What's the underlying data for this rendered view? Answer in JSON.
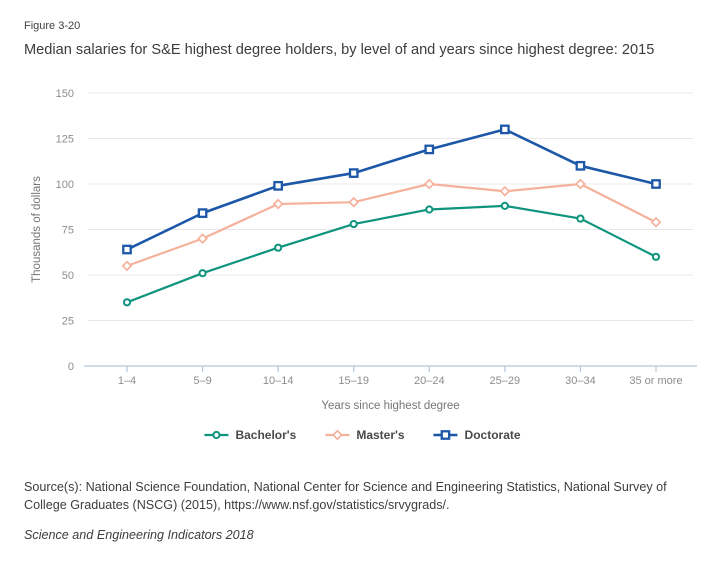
{
  "figure": {
    "label": "Figure 3-20",
    "title": "Median salaries for S&E highest degree holders, by level of and years since highest degree: 2015"
  },
  "chart_data": {
    "type": "line",
    "categories": [
      "1–4",
      "5–9",
      "10–14",
      "15–19",
      "20–24",
      "25–29",
      "30–34",
      "35 or more"
    ],
    "series": [
      {
        "name": "Bachelor's",
        "color": "#0f947e",
        "marker": "circle",
        "values": [
          35,
          51,
          65,
          78,
          86,
          88,
          81,
          60
        ]
      },
      {
        "name": "Master's",
        "color": "#f5b19b",
        "marker": "diamond",
        "values": [
          55,
          70,
          89,
          90,
          100,
          96,
          100,
          79
        ]
      },
      {
        "name": "Doctorate",
        "color": "#1c57a8",
        "marker": "square",
        "values": [
          64,
          84,
          99,
          106,
          119,
          130,
          110,
          100
        ]
      }
    ],
    "xlabel": "Years since highest degree",
    "ylabel": "Thousands of dollars",
    "ylim": [
      0,
      150
    ],
    "yticks": [
      0,
      25,
      50,
      75,
      100,
      125,
      150
    ],
    "grid": true,
    "legend_position": "bottom",
    "styles": {
      "gridline_color": "#e8e8e8",
      "axis_line_color": "#b4c7db",
      "tick_label_color": "#8d8d8d",
      "axis_title_color": "#767676"
    }
  },
  "source": {
    "text": "Source(s): National Science Foundation, National Center for Science and Engineering Statistics, National Survey of College Graduates (NSCG) (2015), https://www.nsf.gov/statistics/srvygrads/."
  },
  "footer": {
    "text": "Science and Engineering Indicators 2018"
  }
}
